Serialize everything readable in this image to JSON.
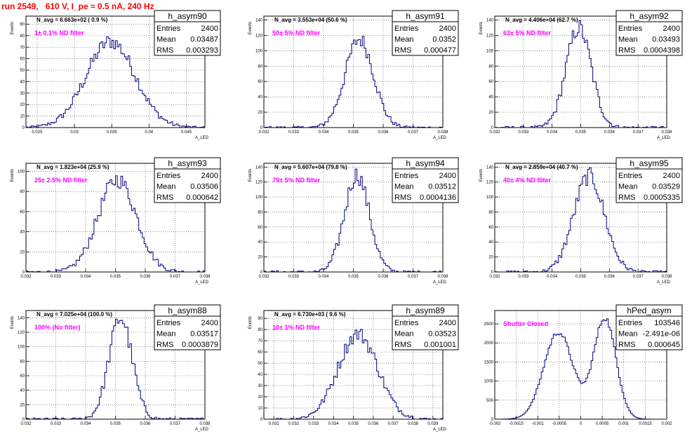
{
  "header": {
    "title": "run 2549,   610 V, I_pe ≈ 0.5 nA, 240 Hz"
  },
  "colors": {
    "header": "#ff0000",
    "hist": "#000080",
    "filter_label": "#ff00ff",
    "grid": "#000000"
  },
  "chart_data": [
    {
      "type": "histogram",
      "name": "h_asym90",
      "navg_text": "N_avg = 6.663e+02 ( 0.9 %)",
      "filter_text": "1± 0.1% ND filter",
      "stats": {
        "entries": "2400",
        "mean": "0.03487",
        "rms": "0.003293"
      },
      "xlabel": "A_LED",
      "ylabel": "Events",
      "xlim": [
        0.0235,
        0.0475
      ],
      "ylim": [
        0,
        97
      ],
      "xticks": [
        0.025,
        0.03,
        0.035,
        0.04,
        0.045
      ],
      "xticklabels": [
        "0.025",
        "0.03",
        "0.035",
        "0.04",
        "0.045"
      ],
      "yticks": [
        0,
        10,
        20,
        30,
        40,
        50,
        60,
        70,
        80,
        90
      ],
      "yticklabels": [
        "0",
        "10",
        "20",
        "30",
        "40",
        "50",
        "60",
        "70",
        "80",
        "90"
      ],
      "grid": true,
      "peak": 75
    },
    {
      "type": "histogram",
      "name": "h_asym91",
      "navg_text": "N_avg = 3.553e+04 (50.6 %)",
      "filter_text": "50± 5% ND filter",
      "stats": {
        "entries": "2400",
        "mean": "0.0352",
        "rms": "0.000477"
      },
      "xlabel": "A_LED",
      "ylabel": "Events",
      "xlim": [
        0.032,
        0.038
      ],
      "ylim": [
        0,
        145
      ],
      "xticks": [
        0.032,
        0.033,
        0.034,
        0.035,
        0.036,
        0.037,
        0.038
      ],
      "xticklabels": [
        "0.032",
        "0.033",
        "0.034",
        "0.035",
        "0.036",
        "0.037",
        "0.038"
      ],
      "yticks": [
        0,
        20,
        40,
        60,
        80,
        100,
        120,
        140
      ],
      "yticklabels": [
        "0",
        "20",
        "40",
        "60",
        "80",
        "100",
        "120",
        "140"
      ],
      "grid": true,
      "peak": 115
    },
    {
      "type": "histogram",
      "name": "h_asym92",
      "navg_text": "N_avg = 4.406e+04 (62.7 %)",
      "filter_text": "63± 5% ND filter",
      "stats": {
        "entries": "2400",
        "mean": "0.03493",
        "rms": "0.0004398"
      },
      "xlabel": "A_LED",
      "ylabel": "Events",
      "xlim": [
        0.032,
        0.038
      ],
      "ylim": [
        0,
        145
      ],
      "xticks": [
        0.032,
        0.033,
        0.034,
        0.035,
        0.036,
        0.037,
        0.038
      ],
      "xticklabels": [
        "0.032",
        "0.033",
        "0.034",
        "0.035",
        "0.036",
        "0.037",
        "0.038"
      ],
      "yticks": [
        0,
        20,
        40,
        60,
        80,
        100,
        120,
        140
      ],
      "yticklabels": [
        "0",
        "20",
        "40",
        "60",
        "80",
        "100",
        "120",
        "140"
      ],
      "grid": true,
      "peak": 130
    },
    {
      "type": "histogram",
      "name": "h_asym93",
      "navg_text": "N_avg = 1.823e+04 (25.9 %)",
      "filter_text": "25± 2.5% ND filter",
      "stats": {
        "entries": "2400",
        "mean": "0.03506",
        "rms": "0.000642"
      },
      "xlabel": "A_LED",
      "ylabel": "Events",
      "xlim": [
        0.032,
        0.038
      ],
      "ylim": [
        0,
        108
      ],
      "xticks": [
        0.032,
        0.033,
        0.034,
        0.035,
        0.036,
        0.037,
        0.038
      ],
      "xticklabels": [
        "0.032",
        "0.033",
        "0.034",
        "0.035",
        "0.036",
        "0.037",
        "0.038"
      ],
      "yticks": [
        0,
        20,
        40,
        60,
        80,
        100
      ],
      "yticklabels": [
        "0",
        "20",
        "40",
        "60",
        "80",
        "100"
      ],
      "grid": true,
      "peak": 92
    },
    {
      "type": "histogram",
      "name": "h_asym94",
      "navg_text": "N_avg = 5.607e+04 (79.8 %)",
      "filter_text": "79± 5% ND filter",
      "stats": {
        "entries": "2400",
        "mean": "0.03512",
        "rms": "0.0004136"
      },
      "xlabel": "A_LED",
      "ylabel": "Events",
      "xlim": [
        0.032,
        0.038
      ],
      "ylim": [
        0,
        145
      ],
      "xticks": [
        0.032,
        0.033,
        0.034,
        0.035,
        0.036,
        0.037,
        0.038
      ],
      "xticklabels": [
        "0.032",
        "0.033",
        "0.034",
        "0.035",
        "0.036",
        "0.037",
        "0.038"
      ],
      "yticks": [
        0,
        20,
        40,
        60,
        80,
        100,
        120,
        140
      ],
      "yticklabels": [
        "0",
        "20",
        "40",
        "60",
        "80",
        "100",
        "120",
        "140"
      ],
      "grid": true,
      "peak": 130
    },
    {
      "type": "histogram",
      "name": "h_asym95",
      "navg_text": "N_avg = 2.859e+04 (40.7 %)",
      "filter_text": "40± 4% ND filter",
      "stats": {
        "entries": "2400",
        "mean": "0.03529",
        "rms": "0.0005335"
      },
      "xlabel": "A_LED",
      "ylabel": "Events",
      "xlim": [
        0.032,
        0.038
      ],
      "ylim": [
        0,
        145
      ],
      "xticks": [
        0.032,
        0.033,
        0.034,
        0.035,
        0.036,
        0.037,
        0.038
      ],
      "xticklabels": [
        "0.032",
        "0.033",
        "0.034",
        "0.035",
        "0.036",
        "0.037",
        "0.038"
      ],
      "yticks": [
        0,
        20,
        40,
        60,
        80,
        100,
        120,
        140
      ],
      "yticklabels": [
        "0",
        "20",
        "40",
        "60",
        "80",
        "100",
        "120",
        "140"
      ],
      "grid": true,
      "peak": 128
    },
    {
      "type": "histogram",
      "name": "h_asym88",
      "navg_text": "N_avg = 7.025e+04 (100.0 %)",
      "filter_text": "100% (No filter)",
      "stats": {
        "entries": "2400",
        "mean": "0.03517",
        "rms": "0.0003879"
      },
      "xlabel": "A_LED",
      "ylabel": "Events",
      "xlim": [
        0.032,
        0.038
      ],
      "ylim": [
        0,
        150
      ],
      "xticks": [
        0.032,
        0.033,
        0.034,
        0.035,
        0.036,
        0.037,
        0.038
      ],
      "xticklabels": [
        "0.032",
        "0.033",
        "0.034",
        "0.035",
        "0.036",
        "0.037",
        "0.038"
      ],
      "yticks": [
        0,
        20,
        40,
        60,
        80,
        100,
        120,
        140
      ],
      "yticklabels": [
        "0",
        "20",
        "40",
        "60",
        "80",
        "100",
        "120",
        "140"
      ],
      "grid": true,
      "peak": 140
    },
    {
      "type": "histogram",
      "name": "h_asym89",
      "navg_text": "N_avg = 6.730e+03 ( 9.6 %)",
      "filter_text": "10± 1% ND filter",
      "stats": {
        "entries": "2400",
        "mean": "0.03523",
        "rms": "0.001001"
      },
      "xlabel": "A_LED",
      "ylabel": "Events",
      "xlim": [
        0.0305,
        0.0395
      ],
      "ylim": [
        0,
        97
      ],
      "xticks": [
        0.031,
        0.032,
        0.033,
        0.034,
        0.035,
        0.036,
        0.037,
        0.038,
        0.039
      ],
      "xticklabels": [
        "0.031",
        "0.032",
        "0.033",
        "0.034",
        "0.035",
        "0.036",
        "0.037",
        "0.038",
        "0.039"
      ],
      "yticks": [
        0,
        10,
        20,
        30,
        40,
        50,
        60,
        70,
        80,
        90
      ],
      "yticklabels": [
        "0",
        "10",
        "20",
        "30",
        "40",
        "50",
        "60",
        "70",
        "80",
        "90"
      ],
      "grid": true,
      "peak": 76
    },
    {
      "type": "histogram",
      "name": "hPed_asym",
      "navg_text": "",
      "filter_text": "Shutter Closed",
      "stats": {
        "entries": "103546",
        "mean": "-2.491e-06",
        "rms": "0.000645"
      },
      "xlabel": "",
      "ylabel": "",
      "xlim": [
        -0.002,
        0.002
      ],
      "ylim": [
        0,
        2850
      ],
      "xticks": [
        -0.002,
        -0.0015,
        -0.001,
        -0.0005,
        0,
        0.0005,
        0.001,
        0.0015,
        0.002
      ],
      "xticklabels": [
        "-0.002",
        "-0.0015",
        "-0.001",
        "-0.0005",
        "0",
        "0.0005",
        "0.001",
        "0.0015",
        "0.002"
      ],
      "yticks": [
        0,
        500,
        1000,
        1500,
        2000,
        2500
      ],
      "yticklabels": [
        "0",
        "500",
        "1000",
        "1500",
        "2000",
        "2500"
      ],
      "grid": true,
      "bimodal": true
    }
  ],
  "stats_labels": {
    "entries": "Entries",
    "mean": "Mean",
    "rms": "RMS"
  }
}
